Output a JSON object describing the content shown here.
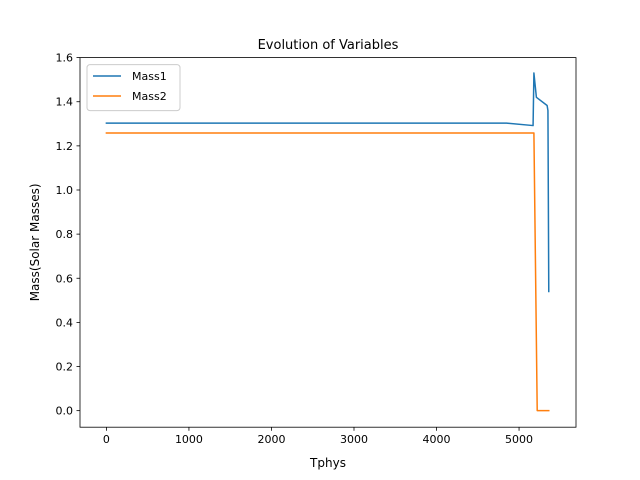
{
  "chart_data": {
    "type": "line",
    "title": "Evolution of Variables",
    "xlabel": "Tphys",
    "ylabel": "Mass(Solar Masses)",
    "xlim": [
      -320,
      5690
    ],
    "ylim": [
      -0.075,
      1.6
    ],
    "xticks": [
      0,
      1000,
      2000,
      3000,
      4000,
      5000
    ],
    "xtick_labels": [
      "0",
      "1000",
      "2000",
      "3000",
      "4000",
      "5000"
    ],
    "yticks": [
      0.0,
      0.2,
      0.4,
      0.6,
      0.8,
      1.0,
      1.2,
      1.4,
      1.6
    ],
    "ytick_labels": [
      "0.0",
      "0.2",
      "0.4",
      "0.6",
      "0.8",
      "1.0",
      "1.2",
      "1.4",
      "1.6"
    ],
    "grid": false,
    "legend_position": "top-left",
    "series": [
      {
        "name": "Mass1",
        "color": "#1f77b4",
        "points": [
          [
            0,
            1.303
          ],
          [
            4850,
            1.303
          ],
          [
            5170,
            1.292
          ],
          [
            5180,
            1.53
          ],
          [
            5210,
            1.42
          ],
          [
            5340,
            1.383
          ],
          [
            5350,
            1.36
          ],
          [
            5360,
            0.54
          ]
        ]
      },
      {
        "name": "Mass2",
        "color": "#ff7f0e",
        "points": [
          [
            0,
            1.258
          ],
          [
            5100,
            1.258
          ],
          [
            5180,
            1.258
          ],
          [
            5220,
            0.0
          ],
          [
            5360,
            0.0
          ]
        ]
      }
    ]
  }
}
